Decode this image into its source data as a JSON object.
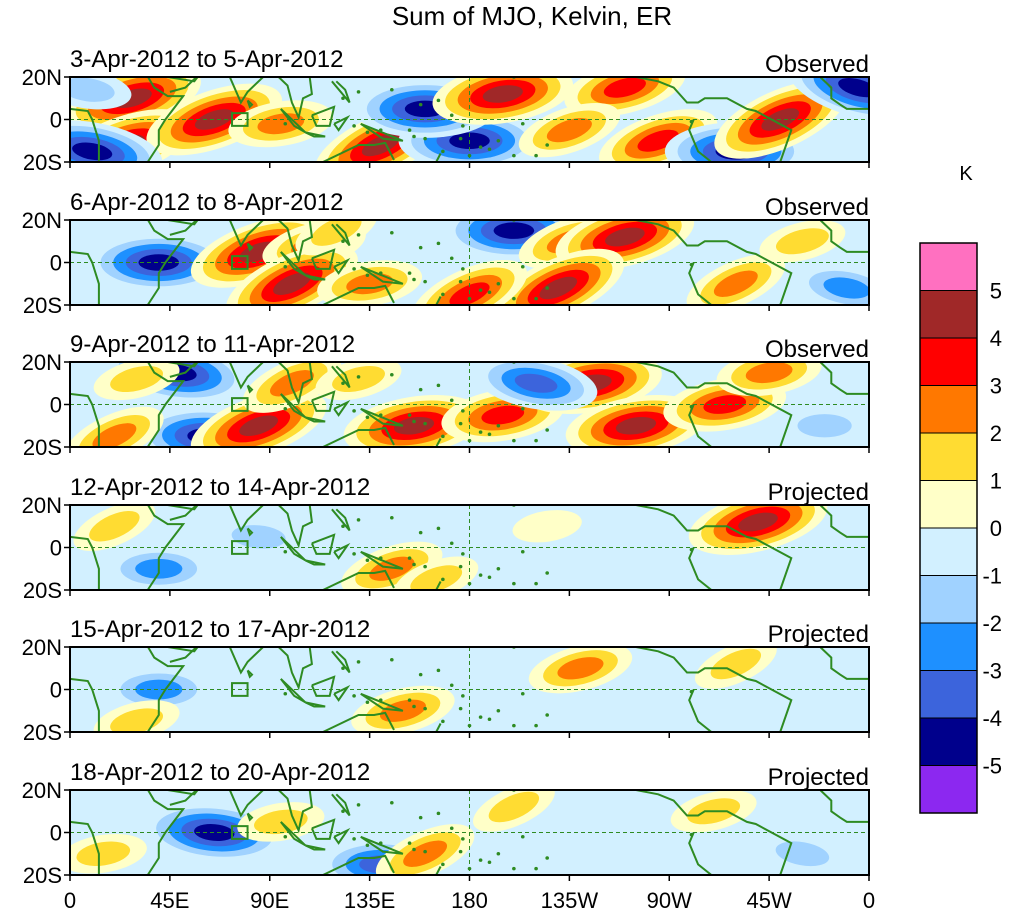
{
  "chart_data": {
    "type": "heatmap",
    "title": "Sum of MJO, Kelvin, ER",
    "colorbar": {
      "unit": "K",
      "tick_labels": [
        "5",
        "4",
        "3",
        "2",
        "1",
        "0",
        "-1",
        "-2",
        "-3",
        "-4",
        "-5"
      ],
      "levels": [
        5,
        4,
        3,
        2,
        1,
        0,
        -1,
        -2,
        -3,
        -4,
        -5
      ],
      "colors": [
        "#ff70c0",
        "#a02828",
        "#ff0000",
        "#ff7800",
        "#ffdc32",
        "#ffffc8",
        "#d2f0ff",
        "#a0d2ff",
        "#1e90ff",
        "#3c64dc",
        "#00008c",
        "#8c28f0"
      ]
    },
    "x_axis": {
      "tick_labels": [
        "0",
        "45E",
        "90E",
        "135E",
        "180",
        "135W",
        "90W",
        "45W",
        "0"
      ],
      "tick_lons": [
        0,
        45,
        90,
        135,
        180,
        225,
        270,
        315,
        360
      ]
    },
    "y_axis": {
      "tick_labels": [
        "20N",
        "0",
        "20S"
      ],
      "tick_lats": [
        20,
        0,
        -20
      ],
      "ylim": [
        -20,
        20
      ]
    },
    "reference_lines": [
      "equator",
      "180"
    ],
    "panels": [
      {
        "date_range": "3-Apr-2012 to 5-Apr-2012",
        "kind": "Observed",
        "features": [
          {
            "lon": 28,
            "lat": 10,
            "value": 5
          },
          {
            "lon": 25,
            "lat": -12,
            "value": 5
          },
          {
            "lon": 65,
            "lat": 0,
            "value": 5
          },
          {
            "lon": 95,
            "lat": -2,
            "value": 3
          },
          {
            "lon": 140,
            "lat": -12,
            "value": 5
          },
          {
            "lon": 180,
            "lat": -10,
            "value": -5
          },
          {
            "lon": 160,
            "lat": 5,
            "value": -5
          },
          {
            "lon": 195,
            "lat": 12,
            "value": 5
          },
          {
            "lon": 250,
            "lat": 15,
            "value": 4
          },
          {
            "lon": 225,
            "lat": -5,
            "value": 3
          },
          {
            "lon": 265,
            "lat": -10,
            "value": 4
          },
          {
            "lon": 300,
            "lat": -15,
            "value": -5
          },
          {
            "lon": 320,
            "lat": 0,
            "value": 5
          },
          {
            "lon": 10,
            "lat": -15,
            "value": -5
          },
          {
            "lon": 355,
            "lat": 15,
            "value": -5
          },
          {
            "lon": 8,
            "lat": 14,
            "value": -2
          }
        ]
      },
      {
        "date_range": "6-Apr-2012 to 8-Apr-2012",
        "kind": "Observed",
        "features": [
          {
            "lon": 40,
            "lat": 0,
            "value": -5
          },
          {
            "lon": 85,
            "lat": 5,
            "value": 5
          },
          {
            "lon": 110,
            "lat": 8,
            "value": 3
          },
          {
            "lon": 100,
            "lat": -10,
            "value": 5
          },
          {
            "lon": 135,
            "lat": -10,
            "value": 3
          },
          {
            "lon": 120,
            "lat": 15,
            "value": 2
          },
          {
            "lon": 200,
            "lat": 15,
            "value": -5
          },
          {
            "lon": 225,
            "lat": 10,
            "value": 3
          },
          {
            "lon": 250,
            "lat": 12,
            "value": 5
          },
          {
            "lon": 220,
            "lat": -12,
            "value": 5
          },
          {
            "lon": 180,
            "lat": -15,
            "value": 4
          },
          {
            "lon": 300,
            "lat": -10,
            "value": 3
          },
          {
            "lon": 330,
            "lat": 10,
            "value": 2
          },
          {
            "lon": 350,
            "lat": -12,
            "value": -3
          }
        ]
      },
      {
        "date_range": "9-Apr-2012 to 11-Apr-2012",
        "kind": "Observed",
        "features": [
          {
            "lon": 48,
            "lat": 15,
            "value": -5
          },
          {
            "lon": 62,
            "lat": -15,
            "value": -5
          },
          {
            "lon": 20,
            "lat": -15,
            "value": 3
          },
          {
            "lon": 30,
            "lat": 12,
            "value": 2
          },
          {
            "lon": 85,
            "lat": -10,
            "value": 5
          },
          {
            "lon": 100,
            "lat": 10,
            "value": 3
          },
          {
            "lon": 130,
            "lat": 12,
            "value": 2
          },
          {
            "lon": 155,
            "lat": -10,
            "value": 5
          },
          {
            "lon": 195,
            "lat": -5,
            "value": 4
          },
          {
            "lon": 235,
            "lat": 10,
            "value": 5
          },
          {
            "lon": 255,
            "lat": -10,
            "value": 5
          },
          {
            "lon": 210,
            "lat": 10,
            "value": -4
          },
          {
            "lon": 295,
            "lat": 0,
            "value": 4
          },
          {
            "lon": 315,
            "lat": 15,
            "value": 3
          },
          {
            "lon": 340,
            "lat": -10,
            "value": -2
          }
        ]
      },
      {
        "date_range": "12-Apr-2012 to 14-Apr-2012",
        "kind": "Projected",
        "features": [
          {
            "lon": 145,
            "lat": -10,
            "value": 3
          },
          {
            "lon": 165,
            "lat": -15,
            "value": 2
          },
          {
            "lon": 310,
            "lat": 12,
            "value": 5
          },
          {
            "lon": 215,
            "lat": 10,
            "value": 1
          },
          {
            "lon": 85,
            "lat": 5,
            "value": -2
          },
          {
            "lon": 40,
            "lat": -10,
            "value": -3
          },
          {
            "lon": 250,
            "lat": -5,
            "value": -1
          },
          {
            "lon": 20,
            "lat": 10,
            "value": 2
          }
        ]
      },
      {
        "date_range": "15-Apr-2012 to 17-Apr-2012",
        "kind": "Projected",
        "features": [
          {
            "lon": 150,
            "lat": -10,
            "value": 3
          },
          {
            "lon": 230,
            "lat": 10,
            "value": 3
          },
          {
            "lon": 300,
            "lat": 12,
            "value": 2
          },
          {
            "lon": 40,
            "lat": 0,
            "value": -3
          },
          {
            "lon": 110,
            "lat": 5,
            "value": -1
          },
          {
            "lon": 30,
            "lat": -15,
            "value": 2
          }
        ]
      },
      {
        "date_range": "18-Apr-2012 to 20-Apr-2012",
        "kind": "Projected",
        "features": [
          {
            "lon": 65,
            "lat": 0,
            "value": -5
          },
          {
            "lon": 140,
            "lat": -15,
            "value": -4
          },
          {
            "lon": 160,
            "lat": -10,
            "value": 3
          },
          {
            "lon": 95,
            "lat": 5,
            "value": 2
          },
          {
            "lon": 200,
            "lat": 12,
            "value": 2
          },
          {
            "lon": 290,
            "lat": 10,
            "value": 2
          },
          {
            "lon": 330,
            "lat": -10,
            "value": -2
          },
          {
            "lon": 15,
            "lat": -10,
            "value": 2
          }
        ]
      }
    ]
  }
}
